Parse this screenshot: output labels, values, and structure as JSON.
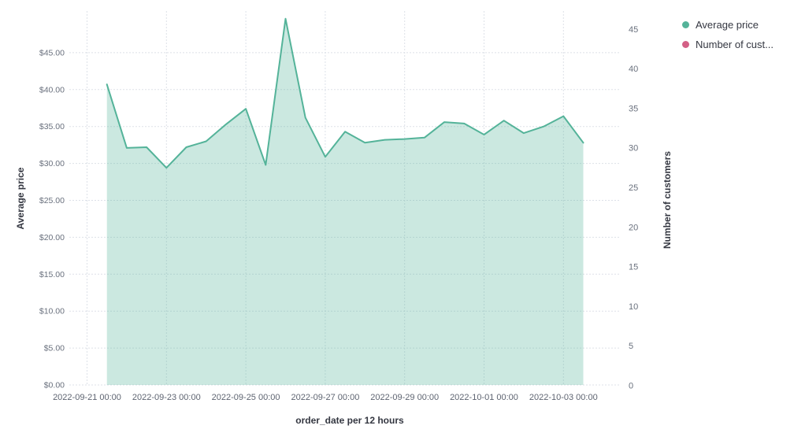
{
  "chart_data": {
    "type": "area",
    "title": "",
    "grid": true,
    "legend_position": "right",
    "x_axis": {
      "title": "order_date per 12 hours",
      "tick_labels": [
        "2022-09-21 00:00",
        "2022-09-23 00:00",
        "2022-09-25 00:00",
        "2022-09-27 00:00",
        "2022-09-29 00:00",
        "2022-10-01 00:00",
        "2022-10-03 00:00"
      ]
    },
    "y_axis_left": {
      "title": "Average price",
      "tick_labels": [
        "$0.00",
        "$5.00",
        "$10.00",
        "$15.00",
        "$20.00",
        "$25.00",
        "$30.00",
        "$35.00",
        "$40.00",
        "$45.00"
      ],
      "range": [
        0,
        45
      ]
    },
    "y_axis_right": {
      "title": "Number of customers",
      "tick_labels": [
        "0",
        "5",
        "10",
        "15",
        "20",
        "25",
        "30",
        "35",
        "40",
        "45"
      ],
      "range": [
        0,
        45
      ]
    },
    "legend": {
      "items": [
        {
          "label": "Average price",
          "color": "#54B399"
        },
        {
          "label": "Number of cust...",
          "color": "#D36086"
        }
      ]
    },
    "series": [
      {
        "name": "Average price",
        "type": "area",
        "axis": "left",
        "color": "#54B399",
        "fill": "rgba(84,179,153,0.30)",
        "x": [
          "2022-09-21 12:00",
          "2022-09-22 00:00",
          "2022-09-22 12:00",
          "2022-09-23 00:00",
          "2022-09-23 12:00",
          "2022-09-24 00:00",
          "2022-09-24 12:00",
          "2022-09-25 00:00",
          "2022-09-25 12:00",
          "2022-09-26 00:00",
          "2022-09-26 12:00",
          "2022-09-27 00:00",
          "2022-09-27 12:00",
          "2022-09-28 00:00",
          "2022-09-28 12:00",
          "2022-09-29 00:00",
          "2022-09-29 12:00",
          "2022-09-30 00:00",
          "2022-09-30 12:00",
          "2022-10-01 00:00",
          "2022-10-01 12:00",
          "2022-10-02 00:00",
          "2022-10-02 12:00",
          "2022-10-03 00:00",
          "2022-10-03 12:00"
        ],
        "values": [
          40.7,
          32.1,
          32.2,
          29.4,
          32.2,
          33.0,
          35.3,
          37.4,
          29.8,
          49.6,
          36.2,
          30.9,
          34.3,
          32.8,
          33.2,
          33.3,
          33.5,
          35.6,
          35.4,
          33.9,
          35.8,
          34.1,
          35.0,
          36.4,
          32.8
        ]
      }
    ]
  }
}
